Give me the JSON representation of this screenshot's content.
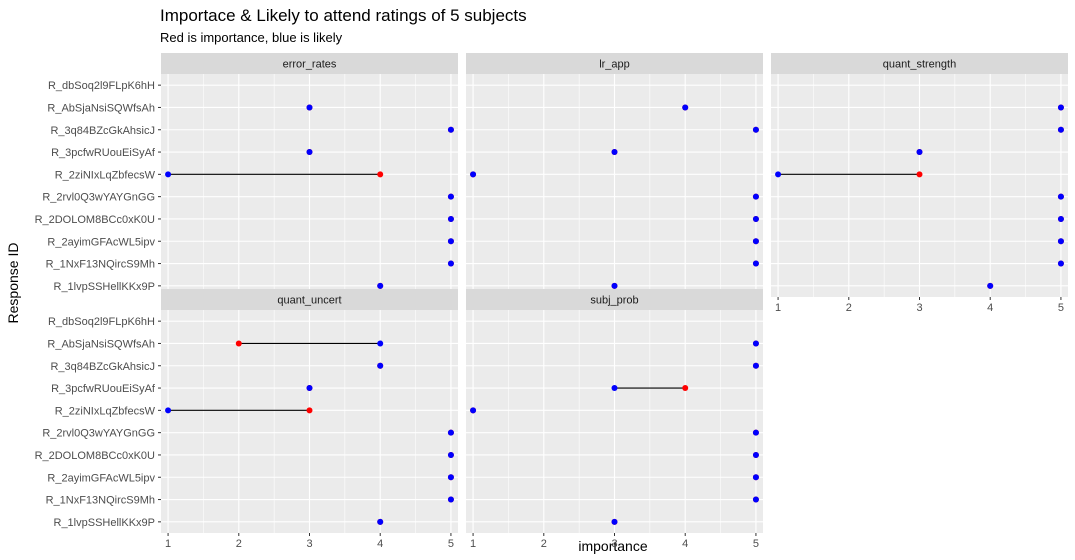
{
  "chart_data": {
    "type": "dumbbell-facet",
    "title": "Importace & Likely to attend ratings of 5 subjects",
    "subtitle": "Red is importance, blue is likely",
    "xlabel": "importance",
    "ylabel": "Response ID",
    "xlim": [
      0.9,
      5.1
    ],
    "x_ticks": [
      1,
      2,
      3,
      4,
      5
    ],
    "grid": true,
    "colors": {
      "importance": "#ff0000",
      "likely": "#0000ff",
      "panel_bg": "#ebebeb",
      "strip_bg": "#d9d9d9",
      "grid": "#ffffff"
    },
    "categories": [
      "R_dbSoq2l9FLpK6hH",
      "R_AbSjaNsiSQWfsAh",
      "R_3q84BZcGkAhsicJ",
      "R_3pcfwRUouEiSyAf",
      "R_2ziNIxLqZbfecsW",
      "R_2rvl0Q3wYAYGnGG",
      "R_2DOLOM8BCc0xK0U",
      "R_2ayimGFAcWL5ipv",
      "R_1NxF13NQircS9Mh",
      "R_1lvpSSHellKKx9P"
    ],
    "facets": [
      {
        "name": "error_rates",
        "importance": [
          null,
          3,
          5,
          3,
          4,
          5,
          5,
          5,
          5,
          4
        ],
        "likely": [
          null,
          3,
          5,
          3,
          1,
          5,
          5,
          5,
          5,
          4
        ]
      },
      {
        "name": "lr_app",
        "importance": [
          null,
          4,
          5,
          3,
          1,
          5,
          5,
          5,
          5,
          3
        ],
        "likely": [
          null,
          4,
          5,
          3,
          1,
          5,
          5,
          5,
          5,
          3
        ]
      },
      {
        "name": "quant_strength",
        "importance": [
          null,
          5,
          5,
          3,
          3,
          5,
          5,
          5,
          5,
          4
        ],
        "likely": [
          null,
          5,
          5,
          3,
          1,
          5,
          5,
          5,
          5,
          4
        ]
      },
      {
        "name": "quant_uncert",
        "importance": [
          null,
          2,
          4,
          3,
          3,
          5,
          5,
          5,
          5,
          4
        ],
        "likely": [
          null,
          4,
          4,
          3,
          1,
          5,
          5,
          5,
          5,
          4
        ]
      },
      {
        "name": "subj_prob",
        "importance": [
          null,
          5,
          5,
          4,
          1,
          5,
          5,
          5,
          5,
          3
        ],
        "likely": [
          null,
          5,
          5,
          3,
          1,
          5,
          5,
          5,
          5,
          3
        ]
      }
    ]
  }
}
